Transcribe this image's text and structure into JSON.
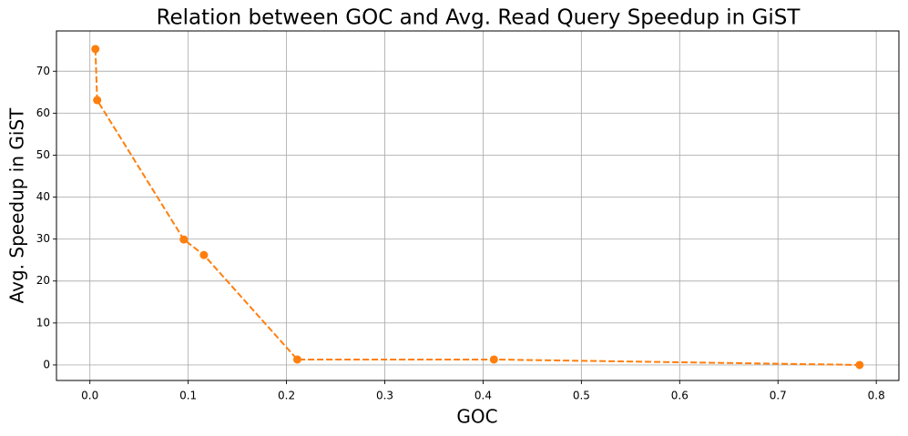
{
  "chart_data": {
    "type": "line",
    "title": "Relation between GOC and Avg. Read Query Speedup in GiST",
    "x_label": "GOC",
    "y_label": "Avg. Speedup in GiST",
    "x": [
      0.0056,
      0.0074,
      0.0955,
      0.116,
      0.211,
      0.411,
      0.783
    ],
    "values": [
      75.3,
      63.1,
      29.9,
      26.2,
      1.3,
      1.3,
      0.0
    ],
    "color": "#ff7f0e",
    "line_style": "dashed",
    "xlim": [
      -0.034,
      0.823
    ],
    "ylim": [
      -3.7,
      79.6
    ],
    "xticks": [
      {
        "value": 0,
        "label": "0.0"
      },
      0.1,
      0.2,
      0.3,
      0.4,
      0.5,
      0.6,
      0.7,
      0.8
    ],
    "yticks": [
      0,
      10,
      20,
      30,
      40,
      50,
      60,
      70
    ],
    "grid": true
  }
}
